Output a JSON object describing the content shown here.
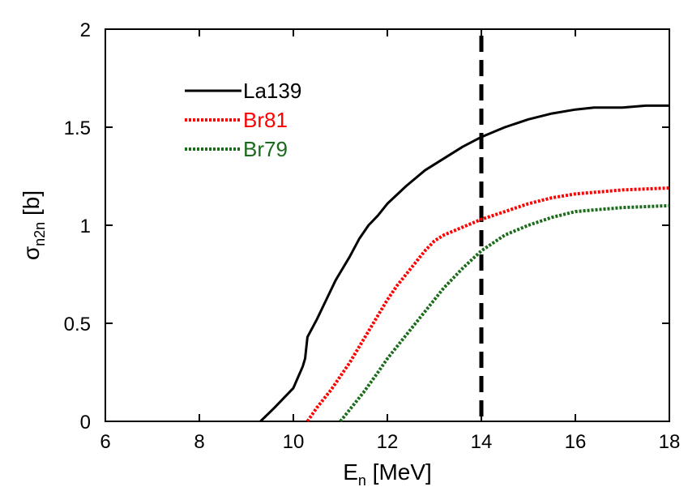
{
  "chart_data": {
    "type": "line",
    "xlabel": {
      "main": "E",
      "sub": "n",
      "unit": " [MeV]"
    },
    "ylabel": {
      "main": "σ",
      "sub": "n2n",
      "unit": " [b]"
    },
    "xlim": [
      6,
      18
    ],
    "ylim": [
      0,
      2
    ],
    "xticks": [
      6,
      8,
      10,
      12,
      14,
      16,
      18
    ],
    "yticks": [
      0,
      0.5,
      1,
      1.5,
      2
    ],
    "ytick_labels": [
      "0",
      "0.5",
      "1",
      "1.5",
      "2"
    ],
    "grid": false,
    "legend_position": "top-left",
    "reference_line": {
      "x": 14,
      "style": "dashed",
      "color": "#000000"
    },
    "series": [
      {
        "name": "La139",
        "color": "#000000",
        "style": "solid",
        "points": [
          [
            9.3,
            0
          ],
          [
            9.6,
            0.07
          ],
          [
            10.0,
            0.17
          ],
          [
            10.2,
            0.28
          ],
          [
            10.25,
            0.32
          ],
          [
            10.3,
            0.43
          ],
          [
            10.5,
            0.52
          ],
          [
            10.7,
            0.62
          ],
          [
            10.9,
            0.72
          ],
          [
            11.0,
            0.76
          ],
          [
            11.2,
            0.84
          ],
          [
            11.4,
            0.93
          ],
          [
            11.6,
            1.0
          ],
          [
            11.8,
            1.05
          ],
          [
            12.0,
            1.11
          ],
          [
            12.4,
            1.2
          ],
          [
            12.8,
            1.28
          ],
          [
            13.2,
            1.34
          ],
          [
            13.6,
            1.4
          ],
          [
            14.0,
            1.45
          ],
          [
            14.5,
            1.5
          ],
          [
            15.0,
            1.54
          ],
          [
            15.5,
            1.57
          ],
          [
            16.0,
            1.59
          ],
          [
            16.4,
            1.6
          ],
          [
            17.0,
            1.6
          ],
          [
            17.5,
            1.61
          ],
          [
            18.0,
            1.61
          ]
        ]
      },
      {
        "name": "Br81",
        "color": "#ff0000",
        "style": "dotted",
        "points": [
          [
            10.3,
            0
          ],
          [
            10.5,
            0.07
          ],
          [
            10.8,
            0.16
          ],
          [
            11.0,
            0.23
          ],
          [
            11.2,
            0.3
          ],
          [
            11.4,
            0.38
          ],
          [
            11.6,
            0.46
          ],
          [
            11.8,
            0.54
          ],
          [
            12.0,
            0.62
          ],
          [
            12.2,
            0.69
          ],
          [
            12.4,
            0.75
          ],
          [
            12.6,
            0.81
          ],
          [
            12.8,
            0.87
          ],
          [
            13.0,
            0.92
          ],
          [
            13.2,
            0.95
          ],
          [
            13.6,
            0.99
          ],
          [
            14.0,
            1.03
          ],
          [
            14.5,
            1.07
          ],
          [
            15.0,
            1.11
          ],
          [
            15.5,
            1.14
          ],
          [
            16.0,
            1.16
          ],
          [
            16.5,
            1.17
          ],
          [
            17.0,
            1.18
          ],
          [
            18.0,
            1.19
          ]
        ]
      },
      {
        "name": "Br79",
        "color": "#1a6b1a",
        "style": "dotted",
        "points": [
          [
            11.0,
            0
          ],
          [
            11.2,
            0.06
          ],
          [
            11.5,
            0.15
          ],
          [
            11.8,
            0.25
          ],
          [
            12.0,
            0.32
          ],
          [
            12.4,
            0.44
          ],
          [
            12.8,
            0.56
          ],
          [
            13.2,
            0.68
          ],
          [
            13.6,
            0.78
          ],
          [
            14.0,
            0.87
          ],
          [
            14.5,
            0.95
          ],
          [
            15.0,
            1.0
          ],
          [
            15.5,
            1.04
          ],
          [
            16.0,
            1.07
          ],
          [
            16.5,
            1.08
          ],
          [
            17.0,
            1.09
          ],
          [
            18.0,
            1.1
          ]
        ]
      }
    ]
  }
}
